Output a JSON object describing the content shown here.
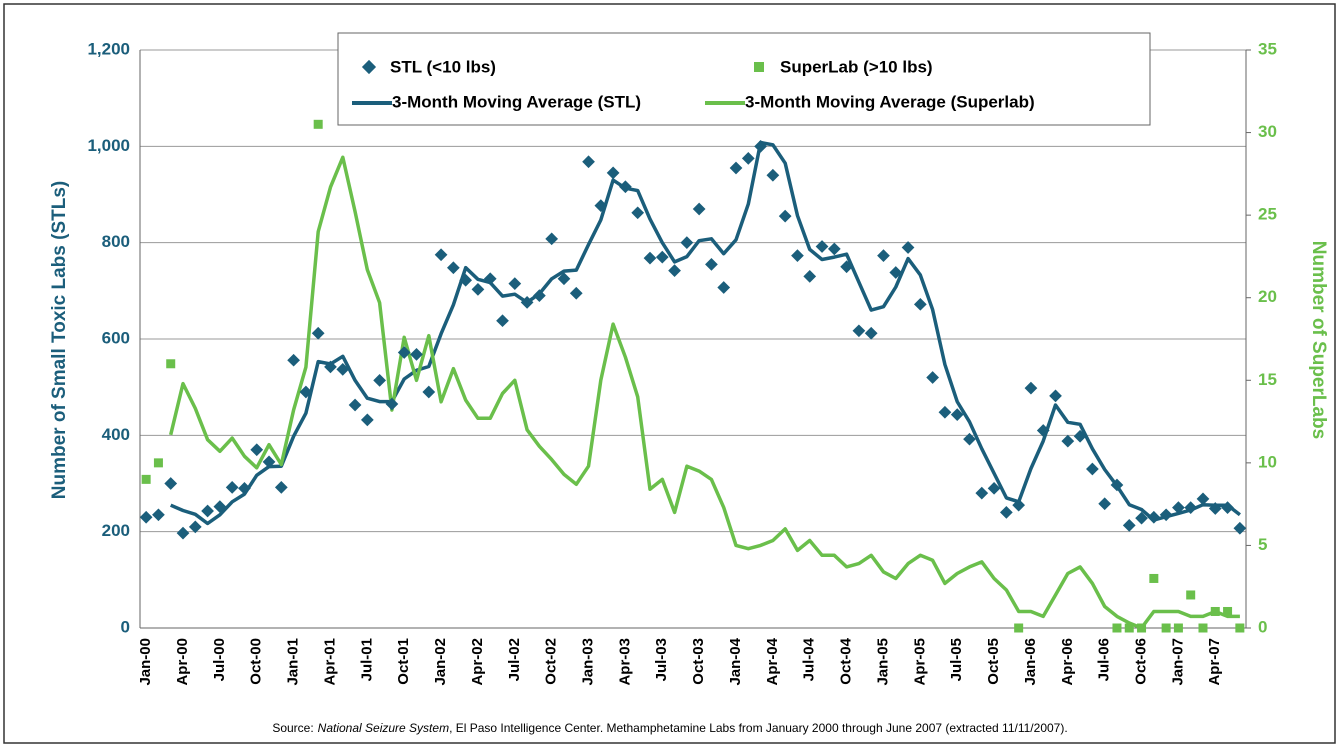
{
  "chart_data": {
    "type": "combo",
    "y_label": "Number of Small Toxic Labs (STLs)",
    "y2_label": "Number of SuperLabs",
    "source": {
      "prefix": "Source:",
      "title": "National Seizure System",
      "rest": ", El Paso Intelligence Center. Methamphetamine Labs from January 2000 through June 2007 (extracted 11/11/2007)."
    },
    "categories": [
      "Jan-00",
      null,
      null,
      "Apr-00",
      null,
      null,
      "Jul-00",
      null,
      null,
      "Oct-00",
      null,
      null,
      "Jan-01",
      null,
      null,
      "Apr-01",
      null,
      null,
      "Jul-01",
      null,
      null,
      "Oct-01",
      null,
      null,
      "Jan-02",
      null,
      null,
      "Apr-02",
      null,
      null,
      "Jul-02",
      null,
      null,
      "Oct-02",
      null,
      null,
      "Jan-03",
      null,
      null,
      "Apr-03",
      null,
      null,
      "Jul-03",
      null,
      null,
      "Oct-03",
      null,
      null,
      "Jan-04",
      null,
      null,
      "Apr-04",
      null,
      null,
      "Jul-04",
      null,
      null,
      "Oct-04",
      null,
      null,
      "Jan-05",
      null,
      null,
      "Apr-05",
      null,
      null,
      "Jul-05",
      null,
      null,
      "Oct-05",
      null,
      null,
      "Jan-06",
      null,
      null,
      "Apr-06",
      null,
      null,
      "Jul-06",
      null,
      null,
      "Oct-06",
      null,
      null,
      "Jan-07",
      null,
      null,
      "Apr-07",
      null,
      null
    ],
    "ylim": [
      0,
      1200
    ],
    "yticks": [
      0,
      200,
      400,
      600,
      800,
      {
        "value": 1000,
        "label": "1,000"
      },
      {
        "value": 1200,
        "label": "1,200"
      }
    ],
    "y2lim": [
      0,
      35
    ],
    "y2ticks": [
      0,
      5,
      10,
      15,
      20,
      25,
      30,
      35
    ],
    "grid": true,
    "series": [
      {
        "name": "STL (<10 lbs)",
        "type": "scatter",
        "marker": "diamond",
        "color": "#1b5e7b",
        "values": [
          230,
          235,
          300,
          197,
          210,
          243,
          252,
          292,
          290,
          370,
          345,
          292,
          556,
          490,
          612,
          542,
          537,
          463,
          432,
          514,
          465,
          572,
          568,
          490,
          775,
          748,
          722,
          703,
          725,
          638,
          715,
          676,
          690,
          808,
          725,
          695,
          968,
          877,
          945,
          916,
          862,
          768,
          770,
          742,
          800,
          870,
          755,
          707,
          955,
          975,
          1000,
          940,
          855,
          773,
          730,
          792,
          787,
          750,
          617,
          612,
          773,
          738,
          790,
          672,
          520,
          448,
          443,
          392,
          280,
          290,
          240,
          255,
          498,
          410,
          482,
          388,
          398,
          330,
          258,
          297,
          213,
          228,
          230,
          235,
          250,
          250,
          268,
          248,
          250,
          207
        ]
      },
      {
        "name": "SuperLab (>10 lbs)",
        "type": "scatter",
        "marker": "square",
        "color": "#6abf4b",
        "axis": "y2",
        "values": [
          9,
          10,
          16,
          null,
          null,
          null,
          null,
          null,
          null,
          null,
          null,
          null,
          null,
          null,
          30.5,
          null,
          null,
          null,
          null,
          null,
          null,
          null,
          null,
          null,
          null,
          null,
          null,
          null,
          null,
          null,
          null,
          null,
          null,
          null,
          null,
          null,
          null,
          null,
          null,
          null,
          null,
          null,
          null,
          null,
          null,
          null,
          null,
          null,
          null,
          null,
          null,
          null,
          null,
          null,
          null,
          null,
          null,
          null,
          null,
          null,
          null,
          null,
          null,
          null,
          null,
          null,
          null,
          null,
          null,
          null,
          null,
          0,
          null,
          null,
          null,
          null,
          null,
          null,
          null,
          0,
          0,
          0,
          3,
          0,
          0,
          2,
          0,
          1,
          1,
          0
        ]
      },
      {
        "name": "3-Month Moving Average (STL)",
        "type": "line",
        "color": "#1b5e7b",
        "values": [
          null,
          null,
          255,
          244,
          236,
          217,
          235,
          262,
          278,
          317,
          335,
          336,
          398,
          446,
          553,
          548,
          564,
          514,
          477,
          470,
          470,
          517,
          535,
          543,
          611,
          671,
          748,
          724,
          717,
          689,
          693,
          676,
          694,
          725,
          741,
          743,
          796,
          847,
          930,
          913,
          908,
          849,
          800,
          760,
          771,
          804,
          808,
          777,
          806,
          880,
          1008,
          1003,
          965,
          856,
          786,
          765,
          770,
          776,
          718,
          660,
          667,
          708,
          767,
          733,
          661,
          547,
          470,
          428,
          372,
          321,
          270,
          262,
          331,
          388,
          463,
          427,
          423,
          372,
          329,
          295,
          256,
          246,
          224,
          231,
          238,
          245,
          256,
          255,
          255,
          235
        ]
      },
      {
        "name": "3-Month Moving Average (Superlab)",
        "type": "line",
        "color": "#6abf4b",
        "axis": "y2",
        "values": [
          null,
          null,
          11.7,
          14.8,
          13.3,
          11.4,
          10.7,
          11.5,
          10.4,
          9.7,
          11.1,
          9.9,
          13.2,
          15.8,
          24,
          26.7,
          28.5,
          25.2,
          21.7,
          19.7,
          13.2,
          17.6,
          15.0,
          17.7,
          13.7,
          15.7,
          13.8,
          12.7,
          12.7,
          14.2,
          15.0,
          12.0,
          11.0,
          10.2,
          9.3,
          8.7,
          9.8,
          15.0,
          18.4,
          16.4,
          14.0,
          8.4,
          9.0,
          7.0,
          9.8,
          9.5,
          9.0,
          7.3,
          5.0,
          4.8,
          5.0,
          5.3,
          6.0,
          4.7,
          5.3,
          4.4,
          4.4,
          3.7,
          3.9,
          4.4,
          3.4,
          3.0,
          3.9,
          4.4,
          4.1,
          2.7,
          3.3,
          3.7,
          4.0,
          3.0,
          2.3,
          1.0,
          1.0,
          0.7,
          2.0,
          3.3,
          3.7,
          2.7,
          1.3,
          0.7,
          0.3,
          0,
          1.0,
          1.0,
          1.0,
          0.7,
          0.7,
          1.0,
          0.7,
          0.7
        ]
      }
    ]
  }
}
